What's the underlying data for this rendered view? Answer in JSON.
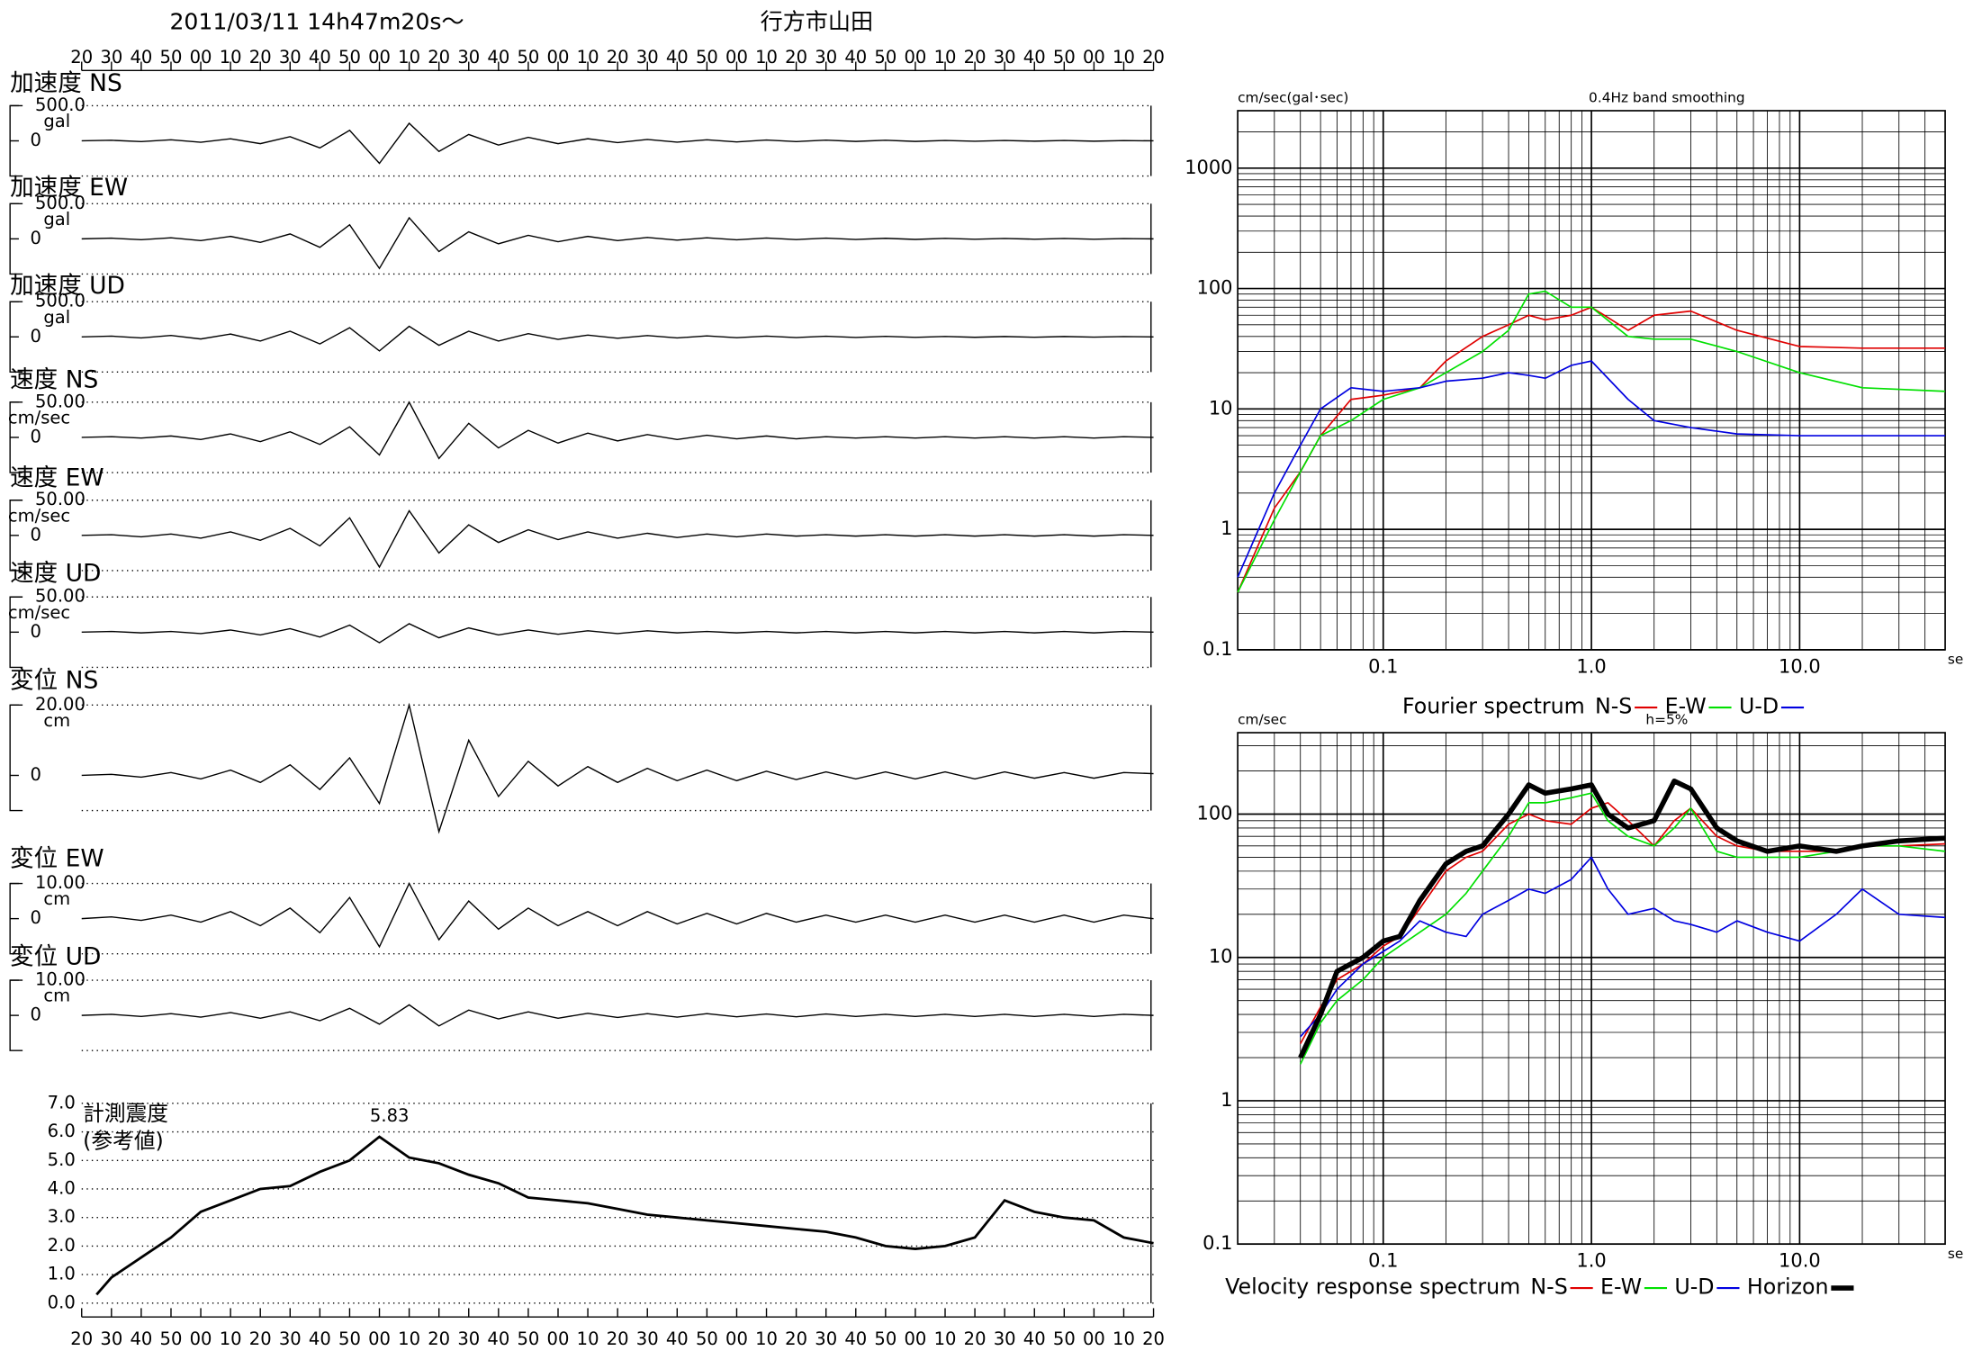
{
  "header": {
    "date": "2011/03/11  14h47m20s〜",
    "station": "行方市山田"
  },
  "chart_data": [
    {
      "type": "line",
      "xlim": [
        0,
        360
      ],
      "xticks": [
        {
          "value": 0,
          "label": "20"
        },
        {
          "value": 10,
          "label": "30"
        },
        {
          "value": 20,
          "label": "40"
        },
        {
          "value": 30,
          "label": "50"
        },
        {
          "value": 40,
          "label": "00"
        },
        {
          "value": 50,
          "label": "10"
        },
        {
          "value": 60,
          "label": "20"
        },
        {
          "value": 70,
          "label": "30"
        },
        {
          "value": 80,
          "label": "40"
        },
        {
          "value": 90,
          "label": "50"
        },
        {
          "value": 100,
          "label": "00"
        },
        {
          "value": 110,
          "label": "10"
        },
        {
          "value": 120,
          "label": "20"
        },
        {
          "value": 130,
          "label": "30"
        },
        {
          "value": 140,
          "label": "40"
        },
        {
          "value": 150,
          "label": "50"
        },
        {
          "value": 160,
          "label": "00"
        },
        {
          "value": 170,
          "label": "10"
        },
        {
          "value": 180,
          "label": "20"
        },
        {
          "value": 190,
          "label": "30"
        },
        {
          "value": 200,
          "label": "40"
        },
        {
          "value": 210,
          "label": "50"
        },
        {
          "value": 220,
          "label": "00"
        },
        {
          "value": 230,
          "label": "10"
        },
        {
          "value": 240,
          "label": "20"
        },
        {
          "value": 250,
          "label": "30"
        },
        {
          "value": 260,
          "label": "40"
        },
        {
          "value": 270,
          "label": "50"
        },
        {
          "value": 280,
          "label": "00"
        },
        {
          "value": 290,
          "label": "10"
        },
        {
          "value": 300,
          "label": "20"
        },
        {
          "value": 310,
          "label": "30"
        },
        {
          "value": 320,
          "label": "40"
        },
        {
          "value": 330,
          "label": "50"
        },
        {
          "value": 340,
          "label": "00"
        },
        {
          "value": 350,
          "label": "10"
        },
        {
          "value": 360,
          "label": "20"
        }
      ],
      "x": [
        0,
        10,
        20,
        30,
        40,
        50,
        60,
        70,
        80,
        90,
        100,
        110,
        120,
        130,
        140,
        150,
        160,
        170,
        180,
        190,
        200,
        210,
        220,
        230,
        240,
        250,
        260,
        270,
        280,
        290,
        300,
        310,
        320,
        330,
        340,
        350,
        360
      ],
      "color": "#000000",
      "panels": [
        {
          "title": "加速度 NS",
          "unit": "gal",
          "ylim": [
            -500,
            500
          ],
          "yticks": [
            0,
            {
              "value": 500,
              "label": "500.0"
            }
          ],
          "values": [
            0,
            8,
            -10,
            15,
            -20,
            30,
            -40,
            60,
            -100,
            150,
            -320,
            250,
            -150,
            90,
            -60,
            50,
            -40,
            30,
            -25,
            20,
            -18,
            15,
            -15,
            12,
            -10,
            10,
            -8,
            8,
            -8,
            6,
            -6,
            6,
            -5,
            5,
            -5,
            4,
            0
          ]
        },
        {
          "title": "加速度 EW",
          "unit": "gal",
          "ylim": [
            -500,
            500
          ],
          "yticks": [
            0,
            {
              "value": 500,
              "label": "500.0"
            }
          ],
          "values": [
            0,
            10,
            -12,
            15,
            -25,
            35,
            -50,
            70,
            -120,
            200,
            -420,
            300,
            -180,
            100,
            -70,
            50,
            -40,
            35,
            -25,
            20,
            -18,
            15,
            -14,
            12,
            -10,
            10,
            -9,
            8,
            -8,
            7,
            -6,
            6,
            -5,
            5,
            -5,
            4,
            0
          ]
        },
        {
          "title": "加速度 UD",
          "unit": "gal",
          "ylim": [
            -500,
            500
          ],
          "yticks": [
            0,
            {
              "value": 500,
              "label": "500.0"
            }
          ],
          "values": [
            0,
            10,
            -15,
            20,
            -30,
            40,
            -60,
            80,
            -100,
            130,
            -200,
            150,
            -120,
            80,
            -60,
            45,
            -35,
            25,
            -20,
            18,
            -15,
            14,
            -12,
            10,
            -10,
            9,
            -8,
            8,
            -7,
            6,
            -6,
            5,
            -5,
            5,
            -4,
            4,
            0
          ]
        },
        {
          "title": "速度 NS",
          "unit": "cm/sec",
          "ylim": [
            -50,
            50
          ],
          "yticks": [
            0,
            {
              "value": 50,
              "label": "50.00"
            }
          ],
          "values": [
            0,
            1,
            -1,
            2,
            -3,
            5,
            -6,
            8,
            -10,
            15,
            -25,
            50,
            -30,
            20,
            -15,
            10,
            -8,
            6,
            -5,
            4,
            -3,
            3,
            -2,
            2,
            -2,
            1,
            -1,
            1,
            -1,
            1,
            -1,
            1,
            -1,
            1,
            -1,
            1,
            0
          ]
        },
        {
          "title": "速度 EW",
          "unit": "cm/sec",
          "ylim": [
            -50,
            50
          ],
          "yticks": [
            0,
            {
              "value": 50,
              "label": "50.00"
            }
          ],
          "values": [
            0,
            1,
            -2,
            2,
            -4,
            5,
            -7,
            10,
            -15,
            25,
            -45,
            35,
            -25,
            15,
            -10,
            8,
            -6,
            5,
            -4,
            3,
            -3,
            2,
            -2,
            2,
            -1,
            1,
            -1,
            1,
            -1,
            1,
            -1,
            1,
            -1,
            1,
            -1,
            1,
            0
          ]
        },
        {
          "title": "速度 UD",
          "unit": "cm/sec",
          "ylim": [
            -50,
            50
          ],
          "yticks": [
            0,
            {
              "value": 50,
              "label": "50.00"
            }
          ],
          "values": [
            0,
            1,
            -1,
            1,
            -2,
            3,
            -4,
            5,
            -7,
            10,
            -15,
            12,
            -8,
            6,
            -4,
            3,
            -3,
            2,
            -2,
            2,
            -1,
            1,
            -1,
            1,
            -1,
            1,
            -1,
            1,
            -1,
            1,
            -1,
            1,
            -1,
            1,
            -1,
            1,
            0
          ]
        },
        {
          "title": "変位 NS",
          "unit": "cm",
          "ylim": [
            -10,
            20
          ],
          "yticks": [
            0,
            {
              "value": 20,
              "label": "20.00"
            }
          ],
          "values": [
            0,
            0.3,
            -0.5,
            0.8,
            -1,
            1.5,
            -2,
            3,
            -4,
            5,
            -8,
            20,
            -16,
            10,
            -6,
            4,
            -3,
            2.5,
            -2,
            2,
            -1.5,
            1.5,
            -1.5,
            1.2,
            -1.2,
            1,
            -1,
            1,
            -1,
            1,
            -1,
            1,
            -0.8,
            0.8,
            -0.8,
            0.8,
            0.5
          ]
        },
        {
          "title": "変位 EW",
          "unit": "cm",
          "ylim": [
            -10,
            10
          ],
          "yticks": [
            0,
            {
              "value": 10,
              "label": "10.00"
            }
          ],
          "values": [
            0,
            0.5,
            -0.5,
            1,
            -1,
            2,
            -2,
            3,
            -4,
            6,
            -8,
            10,
            -6,
            5,
            -3,
            3,
            -2,
            2,
            -2,
            2,
            -1.5,
            1.5,
            -1.5,
            1.5,
            -1,
            1,
            -1,
            1,
            -1,
            1,
            -1,
            1,
            -1,
            1,
            -1,
            1,
            0
          ]
        },
        {
          "title": "変位 UD",
          "unit": "cm",
          "ylim": [
            -10,
            10
          ],
          "yticks": [
            0,
            {
              "value": 10,
              "label": "10.00"
            }
          ],
          "values": [
            0,
            0.3,
            -0.3,
            0.5,
            -0.5,
            0.8,
            -0.8,
            1,
            -1.5,
            2,
            -2.5,
            3,
            -3,
            1.5,
            -1,
            1,
            -0.8,
            0.6,
            -0.6,
            0.5,
            -0.5,
            0.5,
            -0.4,
            0.4,
            -0.4,
            0.4,
            -0.3,
            0.3,
            -0.3,
            0.3,
            -0.3,
            0.3,
            -0.3,
            0.3,
            -0.3,
            0.3,
            0
          ]
        }
      ]
    },
    {
      "type": "line",
      "title": "計測震度",
      "subtitle": "(参考値)",
      "color": "#000000",
      "xlim": [
        0,
        360
      ],
      "ylim": [
        0,
        7
      ],
      "yticks": [
        {
          "value": 0,
          "label": "0.0"
        },
        {
          "value": 1,
          "label": "1.0"
        },
        {
          "value": 2,
          "label": "2.0"
        },
        {
          "value": 3,
          "label": "3.0"
        },
        {
          "value": 4,
          "label": "4.0"
        },
        {
          "value": 5,
          "label": "5.0"
        },
        {
          "value": 6,
          "label": "6.0"
        },
        {
          "value": 7,
          "label": "7.0"
        }
      ],
      "grid": true,
      "x": [
        5,
        10,
        20,
        30,
        40,
        50,
        60,
        70,
        80,
        90,
        100,
        110,
        120,
        130,
        140,
        150,
        160,
        170,
        180,
        190,
        200,
        210,
        220,
        230,
        240,
        250,
        260,
        270,
        280,
        290,
        300,
        310,
        320,
        330,
        340,
        350,
        360
      ],
      "values": [
        0.3,
        0.9,
        1.6,
        2.3,
        3.2,
        3.6,
        4.0,
        4.1,
        4.6,
        5.0,
        5.83,
        5.1,
        4.9,
        4.5,
        4.2,
        3.7,
        3.6,
        3.5,
        3.3,
        3.1,
        3.0,
        2.9,
        2.8,
        2.7,
        2.6,
        2.5,
        2.3,
        2.0,
        1.9,
        2.0,
        2.3,
        3.6,
        3.2,
        3.0,
        2.9,
        2.3,
        2.1
      ]
    },
    {
      "type": "line",
      "title": "Fourier spectrum",
      "subtitle": "0.4Hz band smoothing",
      "ylabel": "cm/sec(gal･sec)",
      "xlabel": "sec",
      "xlog": true,
      "ylog": true,
      "grid": true,
      "xlim": [
        0.02,
        50
      ],
      "ylim": [
        0.1,
        3000
      ],
      "xticks": [
        0.1,
        {
          "value": 1,
          "label": "1.0"
        },
        {
          "value": 10,
          "label": "10.0"
        }
      ],
      "yticks": [
        0.1,
        1,
        10,
        100,
        1000
      ],
      "x": [
        0.02,
        0.03,
        0.04,
        0.05,
        0.07,
        0.1,
        0.15,
        0.2,
        0.3,
        0.4,
        0.5,
        0.6,
        0.8,
        1,
        1.5,
        2,
        3,
        5,
        10,
        20,
        50
      ],
      "series": [
        {
          "name": "N-S",
          "color": "#e00000",
          "values": [
            0.3,
            1.5,
            3,
            6,
            12,
            13,
            15,
            25,
            40,
            50,
            60,
            55,
            60,
            70,
            45,
            60,
            65,
            45,
            33,
            32,
            32
          ]
        },
        {
          "name": "E-W",
          "color": "#00e000",
          "values": [
            0.3,
            1.2,
            3,
            6,
            8,
            12,
            15,
            20,
            30,
            45,
            90,
            95,
            70,
            70,
            40,
            38,
            38,
            30,
            20,
            15,
            14
          ]
        },
        {
          "name": "U-D",
          "color": "#0000e0",
          "values": [
            0.4,
            2,
            5,
            10,
            15,
            14,
            15,
            17,
            18,
            20,
            19,
            18,
            23,
            25,
            12,
            8,
            7,
            6.2,
            6,
            6,
            6
          ]
        }
      ]
    },
    {
      "type": "line",
      "title": "Velocity response spectrum",
      "subtitle": "h=5%",
      "ylabel": "cm/sec",
      "xlabel": "sec",
      "xlog": true,
      "ylog": true,
      "grid": true,
      "xlim": [
        0.02,
        50
      ],
      "ylim": [
        0.1,
        370
      ],
      "xticks": [
        0.1,
        {
          "value": 1,
          "label": "1.0"
        },
        {
          "value": 10,
          "label": "10.0"
        }
      ],
      "yticks": [
        0.1,
        1,
        10,
        100
      ],
      "x": [
        0.04,
        0.05,
        0.06,
        0.08,
        0.1,
        0.12,
        0.15,
        0.2,
        0.25,
        0.3,
        0.4,
        0.5,
        0.6,
        0.8,
        1,
        1.2,
        1.5,
        2,
        2.5,
        3,
        4,
        5,
        7,
        10,
        15,
        20,
        30,
        50
      ],
      "series": [
        {
          "name": "N-S",
          "color": "#e00000",
          "values": [
            2.5,
            4.5,
            7,
            9,
            12,
            14,
            22,
            40,
            50,
            55,
            85,
            100,
            90,
            85,
            110,
            120,
            90,
            60,
            90,
            110,
            70,
            60,
            55,
            55,
            55,
            60,
            60,
            62
          ]
        },
        {
          "name": "E-W",
          "color": "#00e000",
          "values": [
            1.8,
            3.5,
            5,
            7,
            10,
            12,
            15,
            20,
            28,
            40,
            70,
            120,
            120,
            130,
            140,
            90,
            70,
            60,
            80,
            110,
            55,
            50,
            50,
            50,
            55,
            60,
            60,
            55
          ]
        },
        {
          "name": "U-D",
          "color": "#0000e0",
          "values": [
            2.8,
            4,
            6,
            9,
            11,
            13,
            18,
            15,
            14,
            20,
            25,
            30,
            28,
            35,
            50,
            30,
            20,
            22,
            18,
            17,
            15,
            18,
            15,
            13,
            20,
            30,
            20,
            19
          ]
        },
        {
          "name": "Horizon",
          "color": "#000000",
          "values": [
            2,
            4,
            8,
            10,
            13,
            14,
            25,
            45,
            55,
            60,
            100,
            160,
            140,
            150,
            160,
            100,
            80,
            90,
            170,
            150,
            80,
            65,
            55,
            60,
            55,
            60,
            65,
            68
          ]
        }
      ]
    }
  ]
}
